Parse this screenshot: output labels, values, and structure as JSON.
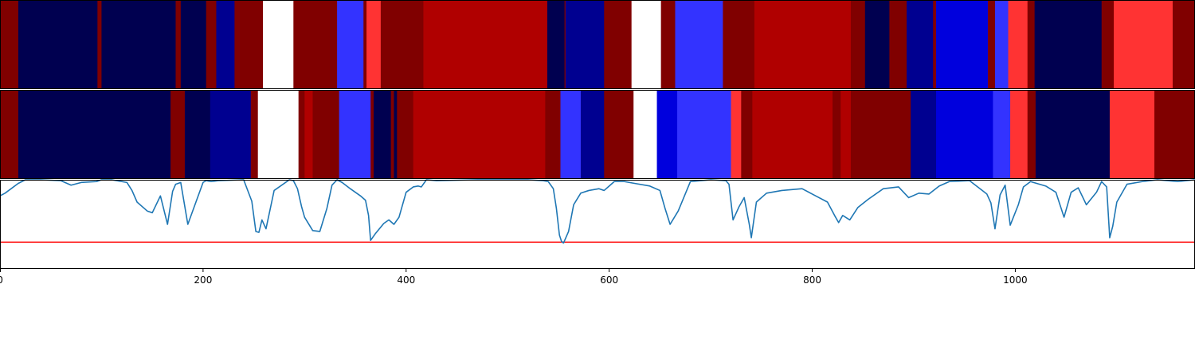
{
  "chart_data": {
    "type": "heatmap",
    "title": "",
    "xlabel": "",
    "ylabel": "",
    "xlim": [
      0,
      1177
    ],
    "grid": false,
    "legend": "none",
    "palette": {
      "white": "#ffffff",
      "darkred": "#800000",
      "red": "#b00000",
      "lightred": "#ff3333",
      "navy": "#000050",
      "darkblue": "#000090",
      "blue": "#0000dd",
      "lightblue": "#3333ff"
    },
    "x_ticks": [
      0,
      200,
      400,
      600,
      800,
      1000
    ],
    "tick_labels": [
      "0",
      "200",
      "400",
      "600",
      "800",
      "1000"
    ],
    "heatmap_rows": [
      {
        "segments": [
          [
            0,
            18,
            "darkred"
          ],
          [
            18,
            96,
            "navy"
          ],
          [
            96,
            100,
            "darkred"
          ],
          [
            100,
            173,
            "navy"
          ],
          [
            173,
            178,
            "darkred"
          ],
          [
            178,
            203,
            "navy"
          ],
          [
            203,
            213,
            "darkred"
          ],
          [
            213,
            231,
            "darkblue"
          ],
          [
            231,
            259,
            "darkred"
          ],
          [
            259,
            289,
            "white"
          ],
          [
            289,
            332,
            "darkred"
          ],
          [
            332,
            358,
            "lightblue"
          ],
          [
            358,
            361,
            "darkred"
          ],
          [
            361,
            375,
            "lightred"
          ],
          [
            375,
            417,
            "darkred"
          ],
          [
            417,
            539,
            "red"
          ],
          [
            539,
            556,
            "navy"
          ],
          [
            556,
            557,
            "darkred"
          ],
          [
            557,
            595,
            "darkblue"
          ],
          [
            595,
            622,
            "darkred"
          ],
          [
            622,
            651,
            "white"
          ],
          [
            651,
            665,
            "darkred"
          ],
          [
            665,
            712,
            "lightblue"
          ],
          [
            712,
            723,
            "darkred"
          ],
          [
            723,
            743,
            "darkred"
          ],
          [
            743,
            838,
            "red"
          ],
          [
            838,
            852,
            "darkred"
          ],
          [
            852,
            876,
            "navy"
          ],
          [
            876,
            893,
            "darkred"
          ],
          [
            893,
            919,
            "darkblue"
          ],
          [
            919,
            922,
            "darkred"
          ],
          [
            922,
            973,
            "blue"
          ],
          [
            973,
            980,
            "darkred"
          ],
          [
            980,
            993,
            "lightblue"
          ],
          [
            993,
            1012,
            "lightred"
          ],
          [
            1012,
            1019,
            "darkred"
          ],
          [
            1019,
            1085,
            "navy"
          ],
          [
            1085,
            1097,
            "darkred"
          ],
          [
            1097,
            1155,
            "lightred"
          ],
          [
            1155,
            1177,
            "darkred"
          ]
        ]
      },
      {
        "segments": [
          [
            0,
            18,
            "darkred"
          ],
          [
            18,
            168,
            "navy"
          ],
          [
            168,
            182,
            "darkred"
          ],
          [
            182,
            207,
            "navy"
          ],
          [
            207,
            247,
            "darkblue"
          ],
          [
            247,
            254,
            "darkred"
          ],
          [
            254,
            294,
            "white"
          ],
          [
            294,
            300,
            "darkred"
          ],
          [
            300,
            308,
            "red"
          ],
          [
            308,
            334,
            "darkred"
          ],
          [
            334,
            365,
            "lightblue"
          ],
          [
            365,
            368,
            "darkred"
          ],
          [
            368,
            385,
            "navy"
          ],
          [
            385,
            388,
            "darkred"
          ],
          [
            388,
            391,
            "navy"
          ],
          [
            391,
            407,
            "darkred"
          ],
          [
            407,
            537,
            "red"
          ],
          [
            537,
            552,
            "darkred"
          ],
          [
            552,
            572,
            "lightblue"
          ],
          [
            572,
            595,
            "darkblue"
          ],
          [
            595,
            624,
            "darkred"
          ],
          [
            624,
            647,
            "white"
          ],
          [
            647,
            667,
            "blue"
          ],
          [
            667,
            720,
            "lightblue"
          ],
          [
            720,
            730,
            "lightred"
          ],
          [
            730,
            741,
            "darkred"
          ],
          [
            741,
            820,
            "red"
          ],
          [
            820,
            828,
            "darkred"
          ],
          [
            828,
            838,
            "red"
          ],
          [
            838,
            897,
            "darkred"
          ],
          [
            897,
            922,
            "darkblue"
          ],
          [
            922,
            978,
            "blue"
          ],
          [
            978,
            995,
            "lightblue"
          ],
          [
            995,
            1012,
            "lightred"
          ],
          [
            1012,
            1020,
            "darkred"
          ],
          [
            1020,
            1093,
            "navy"
          ],
          [
            1093,
            1137,
            "lightred"
          ],
          [
            1137,
            1177,
            "darkred"
          ]
        ]
      }
    ],
    "line_panel": {
      "ylim": [
        0,
        1
      ],
      "threshold": 0.3,
      "threshold_color": "#ff0000",
      "series_color": "#1f77b4",
      "x": [
        0,
        5,
        18,
        25,
        40,
        60,
        70,
        80,
        95,
        100,
        110,
        125,
        130,
        135,
        145,
        150,
        158,
        165,
        170,
        173,
        178,
        185,
        200,
        203,
        208,
        215,
        240,
        248,
        252,
        255,
        258,
        262,
        270,
        285,
        289,
        293,
        297,
        300,
        308,
        315,
        322,
        327,
        332,
        337,
        345,
        355,
        360,
        363,
        365,
        370,
        378,
        383,
        388,
        393,
        400,
        407,
        412,
        415,
        420,
        430,
        470,
        520,
        535,
        540,
        545,
        548,
        551,
        553,
        555,
        560,
        565,
        572,
        580,
        590,
        595,
        600,
        605,
        615,
        625,
        640,
        650,
        655,
        660,
        668,
        680,
        700,
        715,
        718,
        722,
        728,
        733,
        738,
        740,
        745,
        755,
        770,
        790,
        800,
        815,
        822,
        826,
        830,
        837,
        845,
        855,
        870,
        885,
        895,
        905,
        915,
        925,
        935,
        955,
        972,
        976,
        980,
        985,
        990,
        995,
        1003,
        1008,
        1015,
        1030,
        1040,
        1048,
        1055,
        1062,
        1070,
        1080,
        1085,
        1090,
        1093,
        1096,
        1100,
        1110,
        1125,
        1140,
        1160,
        1177
      ],
      "y": [
        0.82,
        0.85,
        0.96,
        1.0,
        1.0,
        0.99,
        0.94,
        0.97,
        0.98,
        1.0,
        1.0,
        0.97,
        0.88,
        0.75,
        0.65,
        0.63,
        0.82,
        0.5,
        0.87,
        0.95,
        0.97,
        0.5,
        0.97,
        0.99,
        0.98,
        0.99,
        1.0,
        0.76,
        0.42,
        0.41,
        0.55,
        0.45,
        0.88,
        1.0,
        0.99,
        0.9,
        0.7,
        0.58,
        0.43,
        0.42,
        0.68,
        0.94,
        1.0,
        0.97,
        0.9,
        0.82,
        0.77,
        0.6,
        0.32,
        0.4,
        0.51,
        0.55,
        0.5,
        0.58,
        0.86,
        0.92,
        0.93,
        0.92,
        1.0,
        0.99,
        1.0,
        1.0,
        0.99,
        0.98,
        0.9,
        0.68,
        0.38,
        0.31,
        0.29,
        0.42,
        0.72,
        0.85,
        0.88,
        0.9,
        0.88,
        0.93,
        0.98,
        0.98,
        0.96,
        0.93,
        0.88,
        0.68,
        0.5,
        0.65,
        0.98,
        1.0,
        0.99,
        0.95,
        0.55,
        0.7,
        0.8,
        0.5,
        0.35,
        0.75,
        0.85,
        0.88,
        0.9,
        0.84,
        0.75,
        0.6,
        0.52,
        0.6,
        0.55,
        0.69,
        0.78,
        0.9,
        0.92,
        0.8,
        0.85,
        0.84,
        0.93,
        0.98,
        0.99,
        0.84,
        0.74,
        0.45,
        0.83,
        0.94,
        0.49,
        0.72,
        0.92,
        0.98,
        0.93,
        0.86,
        0.58,
        0.86,
        0.91,
        0.72,
        0.86,
        0.98,
        0.92,
        0.35,
        0.48,
        0.75,
        0.95,
        0.98,
        1.0,
        0.98,
        1.0
      ]
    }
  }
}
